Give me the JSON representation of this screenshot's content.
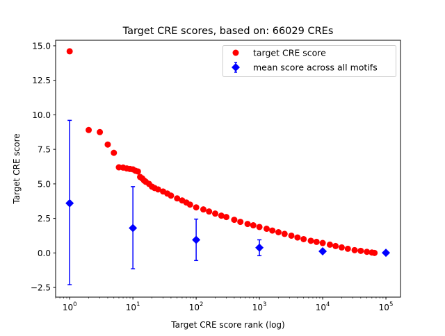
{
  "chart_data": {
    "type": "scatter",
    "title": "Target CRE scores, based on: 66029 CREs",
    "xlabel": "Target CRE score rank (log)",
    "ylabel": "Target CRE score",
    "xscale": "log",
    "xlim": [
      0.6,
      170000
    ],
    "ylim": [
      -3.2,
      15.4
    ],
    "yticks": [
      -2.5,
      0.0,
      2.5,
      5.0,
      7.5,
      10.0,
      12.5,
      15.0
    ],
    "ytick_labels": [
      "−2.5",
      "0.0",
      "2.5",
      "5.0",
      "7.5",
      "10.0",
      "12.5",
      "15.0"
    ],
    "xticks": [
      1,
      10,
      100,
      1000,
      10000,
      100000
    ],
    "xtick_labels": [
      {
        "base": "10",
        "exp": "0"
      },
      {
        "base": "10",
        "exp": "1"
      },
      {
        "base": "10",
        "exp": "2"
      },
      {
        "base": "10",
        "exp": "3"
      },
      {
        "base": "10",
        "exp": "4"
      },
      {
        "base": "10",
        "exp": "5"
      }
    ],
    "grid": false,
    "legend_position": "top-right",
    "series": [
      {
        "name": "target CRE score",
        "color": "#ff0000",
        "marker": "circle",
        "x": [
          1,
          2,
          3,
          4,
          5,
          6,
          7,
          8,
          9,
          10,
          11,
          12,
          13,
          14,
          15,
          16,
          18,
          20,
          22,
          25,
          30,
          35,
          40,
          50,
          60,
          70,
          80,
          100,
          130,
          160,
          200,
          250,
          300,
          400,
          500,
          650,
          800,
          1000,
          1300,
          1600,
          2000,
          2500,
          3200,
          4000,
          5000,
          6500,
          8000,
          10000,
          13000,
          16000,
          20000,
          25000,
          32000,
          40000,
          50000,
          60000,
          66029
        ],
        "y": [
          14.6,
          8.9,
          8.75,
          7.85,
          7.25,
          6.2,
          6.18,
          6.12,
          6.08,
          6.05,
          5.95,
          5.9,
          5.5,
          5.4,
          5.25,
          5.15,
          5.0,
          4.8,
          4.7,
          4.6,
          4.45,
          4.3,
          4.15,
          3.95,
          3.8,
          3.65,
          3.5,
          3.3,
          3.15,
          3.0,
          2.85,
          2.7,
          2.6,
          2.4,
          2.25,
          2.1,
          2.0,
          1.88,
          1.75,
          1.62,
          1.5,
          1.38,
          1.25,
          1.12,
          1.0,
          0.88,
          0.8,
          0.72,
          0.6,
          0.5,
          0.4,
          0.3,
          0.2,
          0.15,
          0.08,
          0.03,
          0.0
        ]
      },
      {
        "name": "mean score across all motifs",
        "color": "#0000ff",
        "marker": "diamond",
        "x": [
          1,
          10,
          100,
          1000,
          10000,
          100000
        ],
        "y": [
          3.6,
          1.8,
          0.95,
          0.38,
          0.12,
          0.01
        ],
        "yerr_low": [
          -2.3,
          -1.15,
          -0.55,
          -0.2,
          0.1,
          0.0
        ],
        "yerr_high": [
          9.6,
          4.8,
          2.45,
          0.95,
          0.14,
          0.02
        ]
      }
    ]
  }
}
